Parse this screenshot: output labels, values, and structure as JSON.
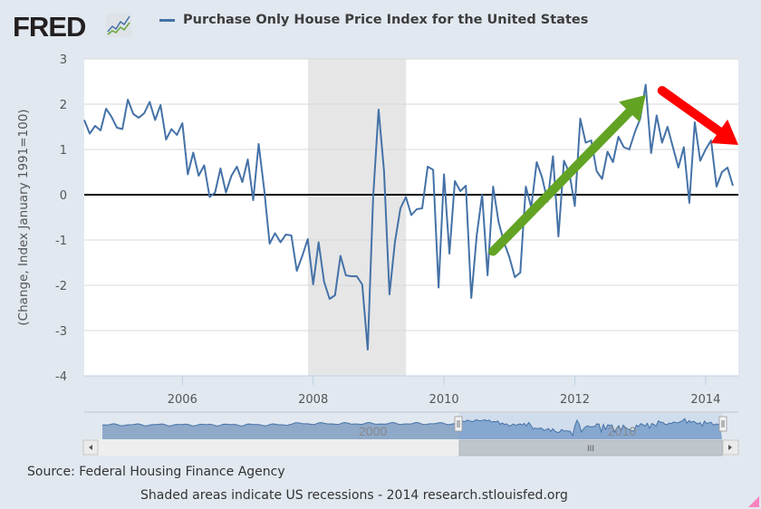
{
  "header": {
    "logo_text": "FRED",
    "logo_icon": "line-chart-icon",
    "legend_label": "Purchase Only House Price Index for the United States"
  },
  "colors": {
    "series": "#4572a7",
    "recession": "#e6e6e6",
    "background": "#e1e8f0",
    "up_arrow": "#62a324",
    "down_arrow": "#ff0000"
  },
  "chart_data": {
    "type": "line",
    "title": "Purchase Only House Price Index for the United States",
    "xlabel": "",
    "ylabel": "(Change, Index January 1991=100)",
    "ylim": [
      -4,
      3
    ],
    "yticks": [
      3,
      2,
      1,
      0,
      -1,
      -2,
      -3,
      -4
    ],
    "xlim": [
      2004.5,
      2014.5
    ],
    "xticks": [
      2006,
      2008,
      2010,
      2012,
      2014
    ],
    "grid": true,
    "legend_position": "top",
    "recessions": [
      {
        "start": 2007.92,
        "end": 2009.42
      }
    ],
    "series": [
      {
        "name": "Purchase Only House Price Index for the United States",
        "start": "2004-07",
        "frequency": "monthly",
        "values": [
          1.65,
          1.35,
          1.52,
          1.42,
          1.9,
          1.72,
          1.48,
          1.45,
          2.1,
          1.78,
          1.7,
          1.8,
          2.05,
          1.65,
          1.98,
          1.22,
          1.45,
          1.32,
          1.58,
          0.45,
          0.93,
          0.42,
          0.65,
          -0.05,
          0.05,
          0.58,
          0.05,
          0.42,
          0.62,
          0.28,
          0.78,
          -0.12,
          1.12,
          0.12,
          -1.08,
          -0.85,
          -1.05,
          -0.88,
          -0.9,
          -1.68,
          -1.35,
          -0.98,
          -1.98,
          -1.05,
          -1.92,
          -2.3,
          -2.22,
          -1.35,
          -1.78,
          -1.8,
          -1.8,
          -1.98,
          -3.42,
          -0.05,
          1.88,
          0.52,
          -2.2,
          -1.05,
          -0.3,
          -0.05,
          -0.45,
          -0.32,
          -0.3,
          0.62,
          0.55,
          -2.05,
          0.45,
          -1.3,
          0.3,
          0.08,
          0.2,
          -2.28,
          -0.9,
          0.0,
          -1.78,
          0.18,
          -0.6,
          -1.05,
          -1.38,
          -1.82,
          -1.72,
          0.18,
          -0.28,
          0.72,
          0.38,
          -0.15,
          0.85,
          -0.92,
          0.75,
          0.48,
          -0.25,
          1.68,
          1.15,
          1.2,
          0.52,
          0.35,
          0.95,
          0.72,
          1.28,
          1.05,
          1.0,
          1.38,
          1.68,
          2.43,
          0.92,
          1.75,
          1.15,
          1.5,
          1.05,
          0.6,
          1.05,
          -0.18,
          1.6,
          0.75,
          1.0,
          1.2,
          0.18,
          0.5,
          0.6,
          0.2
        ]
      }
    ],
    "annotations": [
      {
        "type": "arrow",
        "color": "green",
        "direction": "up",
        "from": [
          "2010-10",
          -1.25
        ],
        "to": [
          "2013-02",
          2.2
        ]
      },
      {
        "type": "arrow",
        "color": "red",
        "direction": "down",
        "from": [
          "2013-05",
          2.3
        ],
        "to": [
          "2014-07",
          1.1
        ]
      }
    ]
  },
  "navigator": {
    "labels": [
      "2000",
      "2010"
    ],
    "selected_range_start": 2004.5,
    "selected_range_end": 2014.5
  },
  "scrollbar": {
    "left_arrow": "scroll-left-icon",
    "right_arrow": "scroll-right-icon",
    "grip": "III"
  },
  "footer": {
    "source": "Source: Federal Housing Finance Agency",
    "note": "Shaded areas indicate US recessions - 2014 research.stlouisfed.org"
  }
}
